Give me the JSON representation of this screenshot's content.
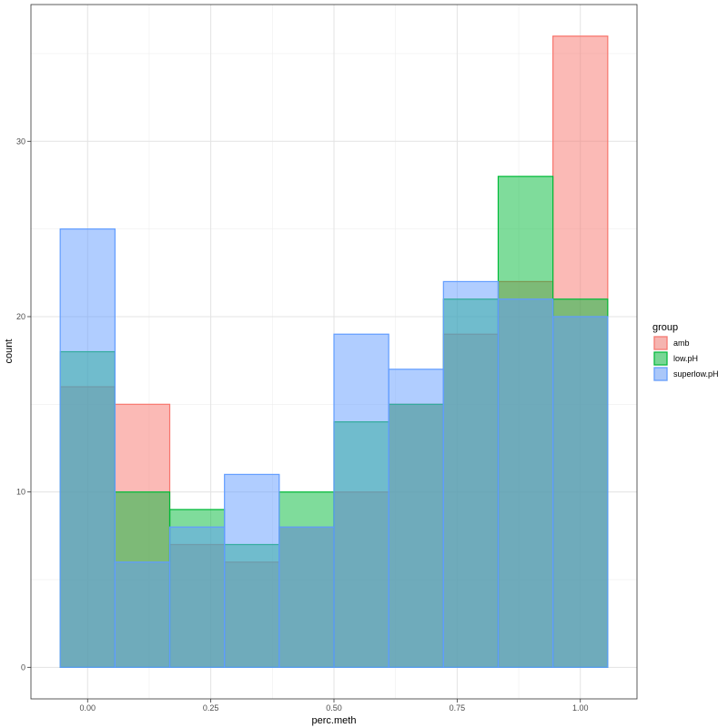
{
  "chart_data": {
    "type": "histogram",
    "xlabel": "perc.meth",
    "ylabel": "count",
    "xlim": [
      -0.115,
      1.115
    ],
    "ylim": [
      -1.8,
      37.8
    ],
    "x_ticks": [
      0.0,
      0.25,
      0.5,
      0.75,
      1.0
    ],
    "x_tick_labels": [
      "0.00",
      "0.25",
      "0.50",
      "0.75",
      "1.00"
    ],
    "y_ticks": [
      0,
      10,
      20,
      30
    ],
    "y_tick_labels": [
      "0",
      "10",
      "20",
      "30"
    ],
    "grid": true,
    "legend": {
      "title": "group",
      "position": "right"
    },
    "bin_edges": [
      -0.0556,
      0.0556,
      0.1667,
      0.2778,
      0.3889,
      0.5,
      0.6111,
      0.7222,
      0.8333,
      0.9444,
      1.0556
    ],
    "series": [
      {
        "name": "amb",
        "color": "#F8766D",
        "values": [
          16,
          15,
          7,
          6,
          8,
          10,
          15,
          19,
          22,
          36
        ]
      },
      {
        "name": "low.pH",
        "color": "#00BA38",
        "values": [
          18,
          10,
          9,
          7,
          10,
          14,
          15,
          21,
          28,
          21
        ]
      },
      {
        "name": "superlow.pH",
        "color": "#619CFF",
        "values": [
          25,
          6,
          8,
          11,
          8,
          19,
          17,
          22,
          21,
          20
        ]
      }
    ]
  }
}
